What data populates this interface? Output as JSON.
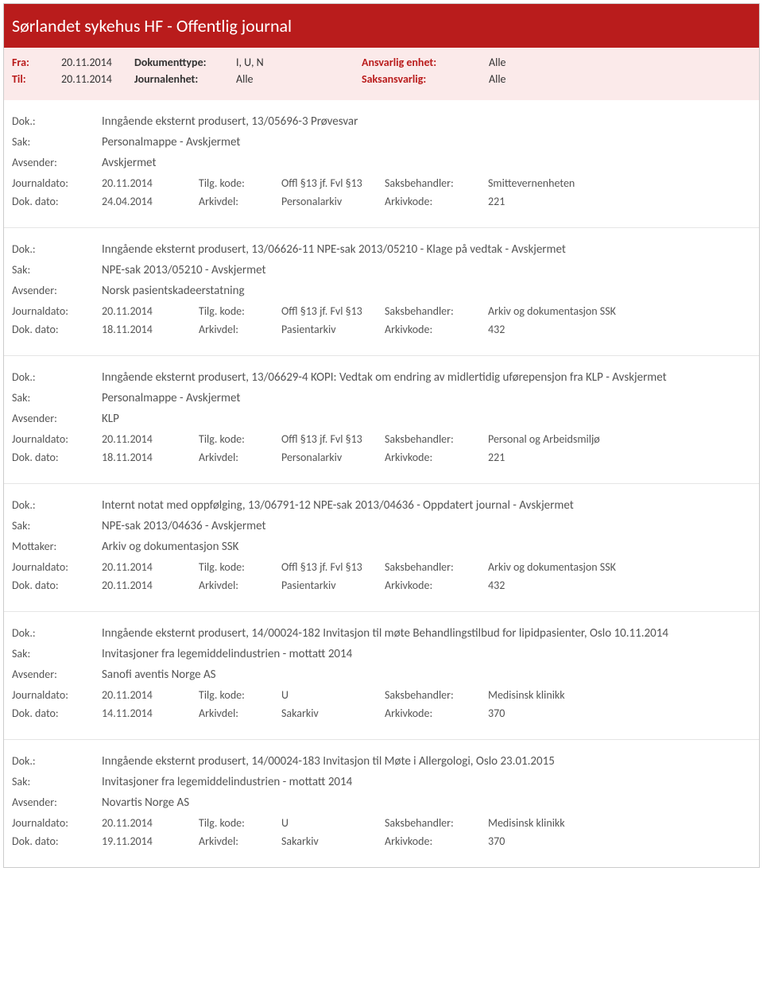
{
  "header": {
    "title": "Sørlandet sykehus HF - Offentlig journal",
    "bg_color": "#b91c1c",
    "meta_bg_color": "#fbeaea",
    "fra_label": "Fra:",
    "fra_value": "20.11.2014",
    "til_label": "Til:",
    "til_value": "20.11.2014",
    "doktype_label": "Dokumenttype:",
    "doktype_value": "I, U, N",
    "journalenhet_label": "Journalenhet:",
    "journalenhet_value": "Alle",
    "ansvarlig_label": "Ansvarlig enhet:",
    "ansvarlig_value": "Alle",
    "saksansvarlig_label": "Saksansvarlig:",
    "saksansvarlig_value": "Alle"
  },
  "labels": {
    "dok": "Dok.:",
    "sak": "Sak:",
    "avsender": "Avsender:",
    "mottaker": "Mottaker:",
    "journaldato": "Journaldato:",
    "dokdato": "Dok. dato:",
    "tilgkode": "Tilg. kode:",
    "arkivdel": "Arkivdel:",
    "saksbehandler": "Saksbehandler:",
    "arkivkode": "Arkivkode:"
  },
  "entries": [
    {
      "dok": "Inngående eksternt produsert, 13/05696-3 Prøvesvar",
      "sak": "Personalmappe - Avskjermet",
      "party_label": "Avsender:",
      "party_value": "Avskjermet",
      "journaldato": "20.11.2014",
      "dokdato": "24.04.2014",
      "tilgkode": "Offl §13 jf. Fvl §13",
      "arkivdel": "Personalarkiv",
      "saksbehandler": "Smittevernenheten",
      "arkivkode": "221"
    },
    {
      "dok": "Inngående eksternt produsert, 13/06626-11 NPE-sak 2013/05210 - Klage på vedtak - Avskjermet",
      "sak": "NPE-sak 2013/05210 - Avskjermet",
      "party_label": "Avsender:",
      "party_value": "Norsk pasientskadeerstatning",
      "journaldato": "20.11.2014",
      "dokdato": "18.11.2014",
      "tilgkode": "Offl §13 jf. Fvl §13",
      "arkivdel": "Pasientarkiv",
      "saksbehandler": "Arkiv og dokumentasjon SSK",
      "arkivkode": "432"
    },
    {
      "dok": "Inngående eksternt produsert, 13/06629-4 KOPI: Vedtak om endring av midlertidig uførepensjon fra KLP - Avskjermet",
      "sak": "Personalmappe - Avskjermet",
      "party_label": "Avsender:",
      "party_value": "KLP",
      "journaldato": "20.11.2014",
      "dokdato": "18.11.2014",
      "tilgkode": "Offl §13 jf. Fvl §13",
      "arkivdel": "Personalarkiv",
      "saksbehandler": "Personal og Arbeidsmiljø",
      "arkivkode": "221"
    },
    {
      "dok": "Internt notat med oppfølging, 13/06791-12 NPE-sak 2013/04636 - Oppdatert journal - Avskjermet",
      "sak": "NPE-sak 2013/04636 - Avskjermet",
      "party_label": "Mottaker:",
      "party_value": "Arkiv og dokumentasjon SSK",
      "journaldato": "20.11.2014",
      "dokdato": "20.11.2014",
      "tilgkode": "Offl §13 jf. Fvl §13",
      "arkivdel": "Pasientarkiv",
      "saksbehandler": "Arkiv og dokumentasjon SSK",
      "arkivkode": "432"
    },
    {
      "dok": "Inngående eksternt produsert, 14/00024-182 Invitasjon til møte Behandlingstilbud for lipidpasienter, Oslo 10.11.2014",
      "sak": "Invitasjoner fra legemiddelindustrien - mottatt 2014",
      "party_label": "Avsender:",
      "party_value": "Sanofi aventis Norge AS",
      "journaldato": "20.11.2014",
      "dokdato": "14.11.2014",
      "tilgkode": "U",
      "arkivdel": "Sakarkiv",
      "saksbehandler": "Medisinsk klinikk",
      "arkivkode": "370"
    },
    {
      "dok": "Inngående eksternt produsert, 14/00024-183 Invitasjon til Møte i Allergologi, Oslo 23.01.2015",
      "sak": "Invitasjoner fra legemiddelindustrien - mottatt 2014",
      "party_label": "Avsender:",
      "party_value": "Novartis Norge AS",
      "journaldato": "20.11.2014",
      "dokdato": "19.11.2014",
      "tilgkode": "U",
      "arkivdel": "Sakarkiv",
      "saksbehandler": "Medisinsk klinikk",
      "arkivkode": "370"
    }
  ]
}
